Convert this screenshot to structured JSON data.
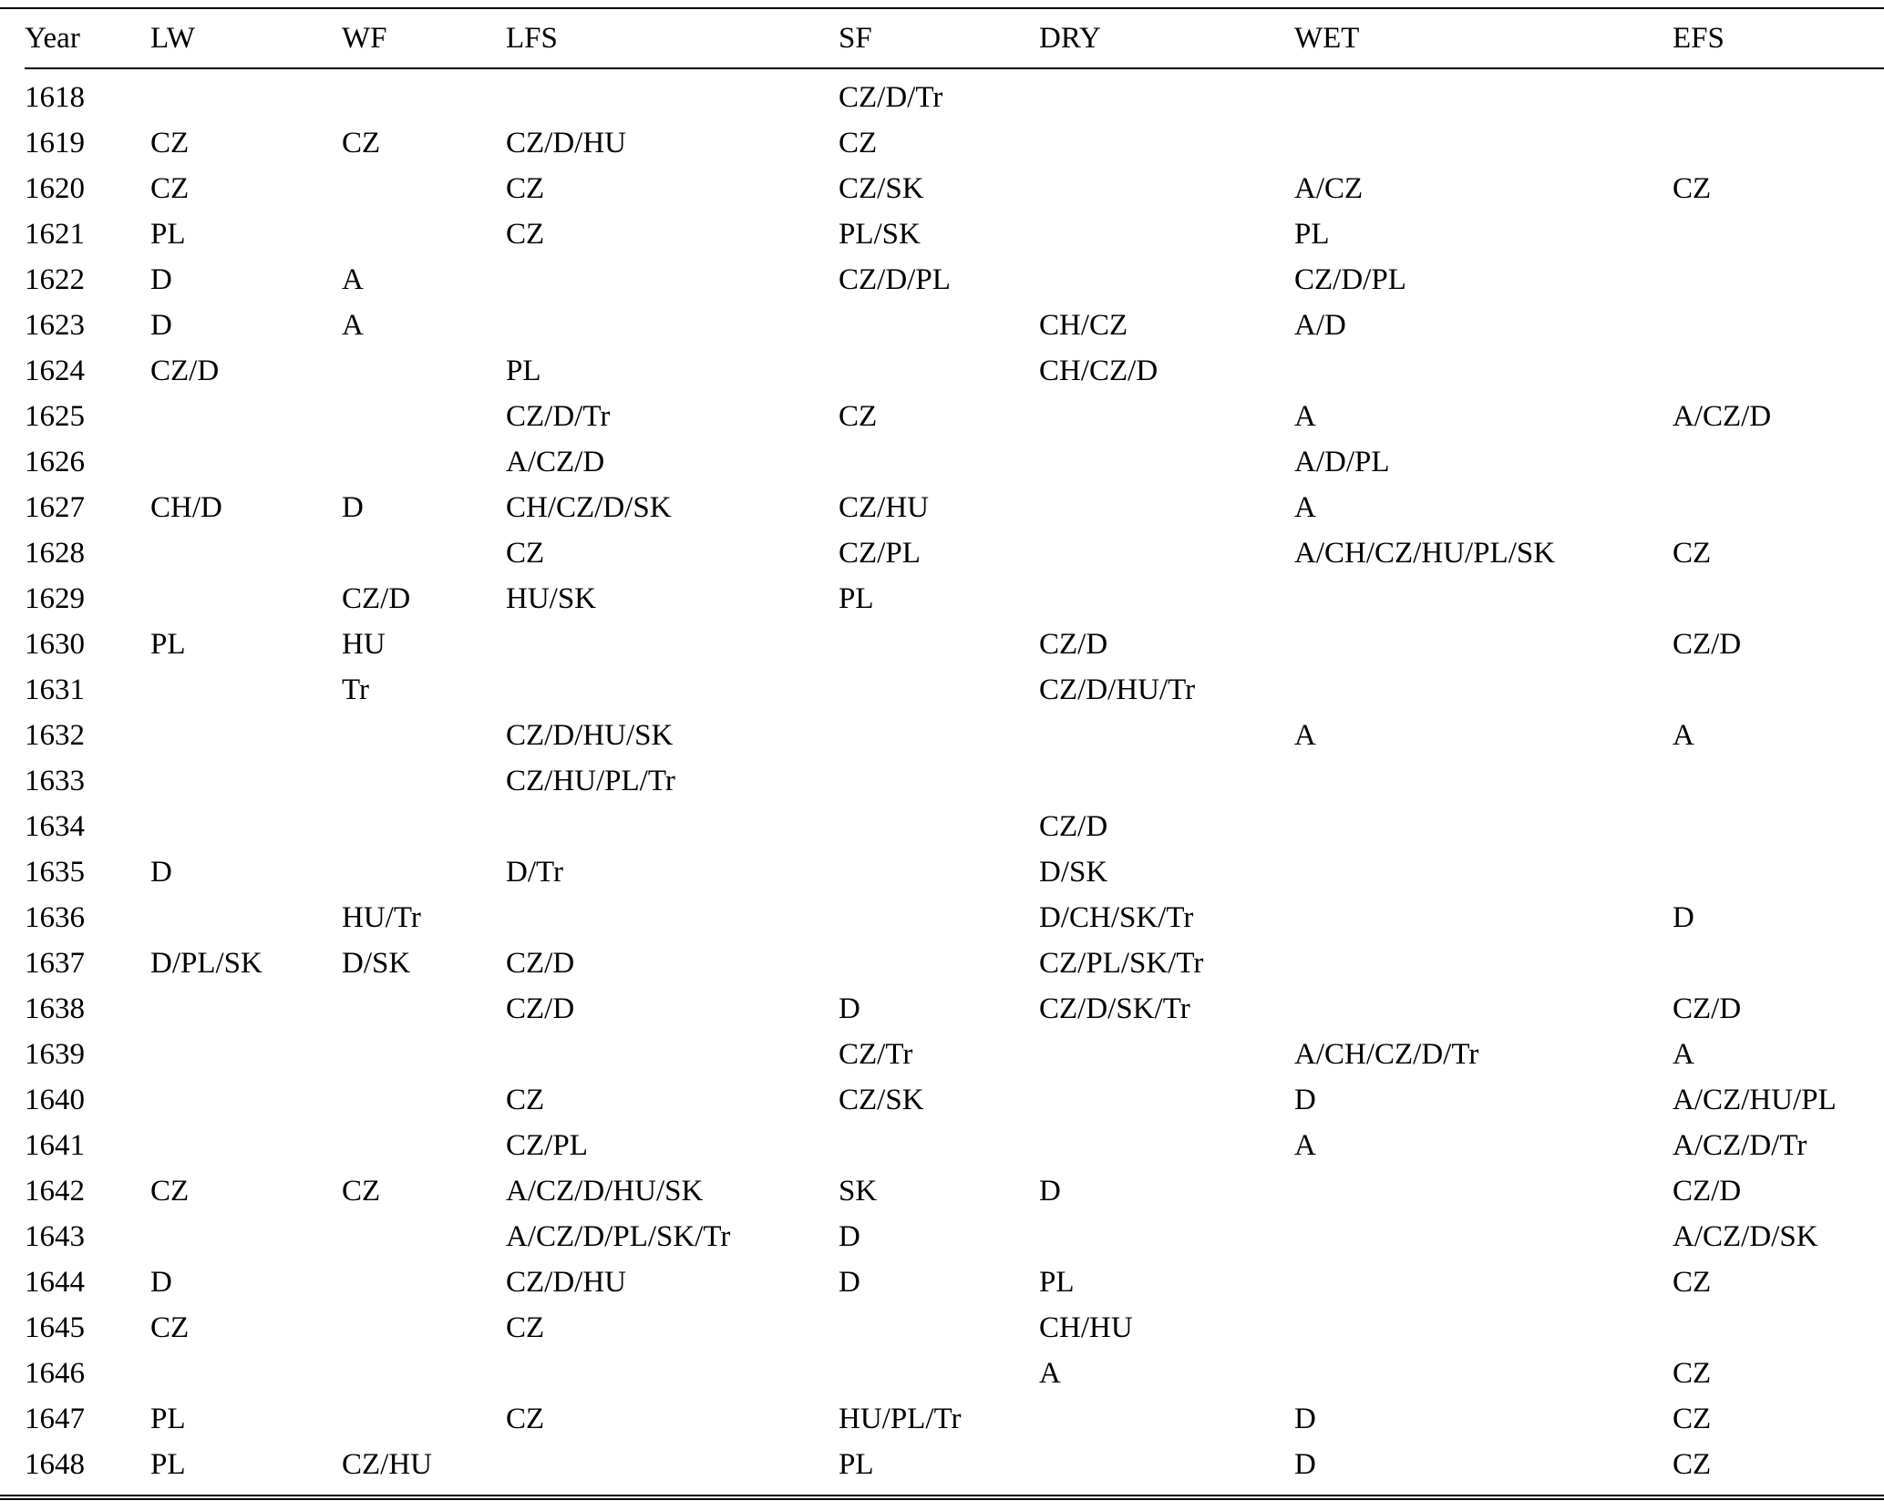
{
  "table": {
    "columns": [
      "Year",
      "LW",
      "WF",
      "LFS",
      "SF",
      "DRY",
      "WET",
      "EFS"
    ],
    "rows": [
      [
        "1618",
        "",
        "",
        "",
        "CZ/D/Tr",
        "",
        "",
        ""
      ],
      [
        "1619",
        "CZ",
        "CZ",
        "CZ/D/HU",
        "CZ",
        "",
        "",
        ""
      ],
      [
        "1620",
        "CZ",
        "",
        "CZ",
        "CZ/SK",
        "",
        "A/CZ",
        "CZ"
      ],
      [
        "1621",
        "PL",
        "",
        "CZ",
        "PL/SK",
        "",
        "PL",
        ""
      ],
      [
        "1622",
        "D",
        "A",
        "",
        "CZ/D/PL",
        "",
        "CZ/D/PL",
        ""
      ],
      [
        "1623",
        "D",
        "A",
        "",
        "",
        "CH/CZ",
        "A/D",
        ""
      ],
      [
        "1624",
        "CZ/D",
        "",
        "PL",
        "",
        "CH/CZ/D",
        "",
        ""
      ],
      [
        "1625",
        "",
        "",
        "CZ/D/Tr",
        "CZ",
        "",
        "A",
        "A/CZ/D"
      ],
      [
        "1626",
        "",
        "",
        "A/CZ/D",
        "",
        "",
        "A/D/PL",
        ""
      ],
      [
        "1627",
        "CH/D",
        "D",
        "CH/CZ/D/SK",
        "CZ/HU",
        "",
        "A",
        ""
      ],
      [
        "1628",
        "",
        "",
        "CZ",
        "CZ/PL",
        "",
        "A/CH/CZ/HU/PL/SK",
        "CZ"
      ],
      [
        "1629",
        "",
        "CZ/D",
        "HU/SK",
        "PL",
        "",
        "",
        ""
      ],
      [
        "1630",
        "PL",
        "HU",
        "",
        "",
        "CZ/D",
        "",
        "CZ/D"
      ],
      [
        "1631",
        "",
        "Tr",
        "",
        "",
        "CZ/D/HU/Tr",
        "",
        ""
      ],
      [
        "1632",
        "",
        "",
        "CZ/D/HU/SK",
        "",
        "",
        "A",
        "A"
      ],
      [
        "1633",
        "",
        "",
        "CZ/HU/PL/Tr",
        "",
        "",
        "",
        ""
      ],
      [
        "1634",
        "",
        "",
        "",
        "",
        "CZ/D",
        "",
        ""
      ],
      [
        "1635",
        "D",
        "",
        "D/Tr",
        "",
        "D/SK",
        "",
        ""
      ],
      [
        "1636",
        "",
        "HU/Tr",
        "",
        "",
        "D/CH/SK/Tr",
        "",
        "D"
      ],
      [
        "1637",
        "D/PL/SK",
        "D/SK",
        "CZ/D",
        "",
        "CZ/PL/SK/Tr",
        "",
        ""
      ],
      [
        "1638",
        "",
        "",
        "CZ/D",
        "D",
        "CZ/D/SK/Tr",
        "",
        "CZ/D"
      ],
      [
        "1639",
        "",
        "",
        "",
        "CZ/Tr",
        "",
        "A/CH/CZ/D/Tr",
        "A"
      ],
      [
        "1640",
        "",
        "",
        "CZ",
        "CZ/SK",
        "",
        "D",
        "A/CZ/HU/PL"
      ],
      [
        "1641",
        "",
        "",
        "CZ/PL",
        "",
        "",
        "A",
        "A/CZ/D/Tr"
      ],
      [
        "1642",
        "CZ",
        "CZ",
        "A/CZ/D/HU/SK",
        "SK",
        "D",
        "",
        "CZ/D"
      ],
      [
        "1643",
        "",
        "",
        "A/CZ/D/PL/SK/Tr",
        "D",
        "",
        "",
        "A/CZ/D/SK"
      ],
      [
        "1644",
        "D",
        "",
        "CZ/D/HU",
        "D",
        "PL",
        "",
        "CZ"
      ],
      [
        "1645",
        "CZ",
        "",
        "CZ",
        "",
        "CH/HU",
        "",
        ""
      ],
      [
        "1646",
        "",
        "",
        "",
        "",
        "A",
        "",
        "CZ"
      ],
      [
        "1647",
        "PL",
        "",
        "CZ",
        "HU/PL/Tr",
        "",
        "D",
        "CZ"
      ],
      [
        "1648",
        "PL",
        "CZ/HU",
        "",
        "PL",
        "",
        "D",
        "CZ"
      ]
    ]
  }
}
